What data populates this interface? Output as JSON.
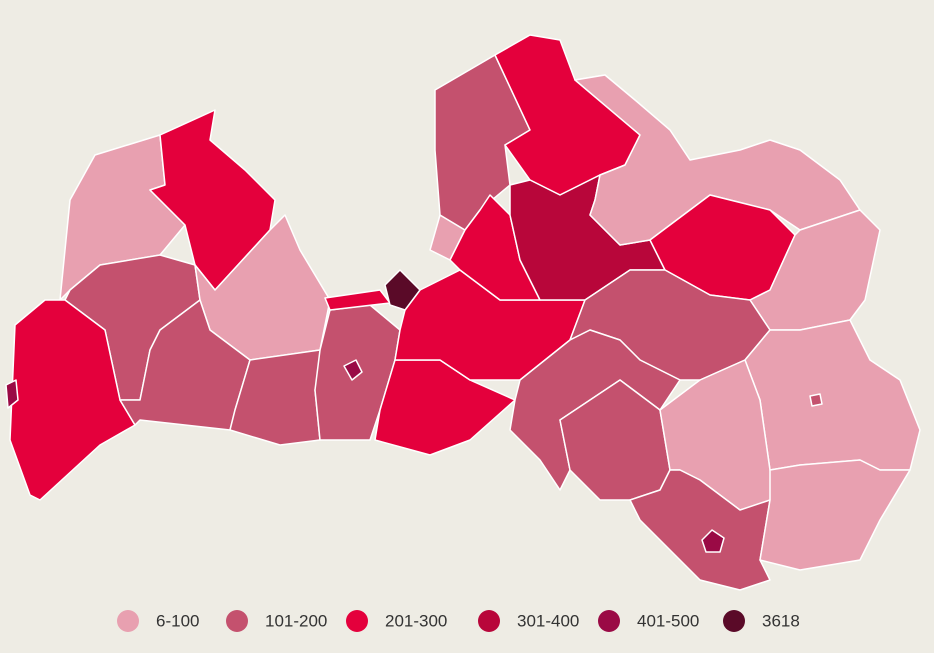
{
  "legend": [
    {
      "label": "6-100",
      "color": "#e8a0b0"
    },
    {
      "label": "101-200",
      "color": "#c4516e"
    },
    {
      "label": "201-300",
      "color": "#e4003c"
    },
    {
      "label": "301-400",
      "color": "#b8063a"
    },
    {
      "label": "401-500",
      "color": "#9a0a45"
    },
    {
      "label": "3618",
      "color": "#5a0a28"
    }
  ]
}
